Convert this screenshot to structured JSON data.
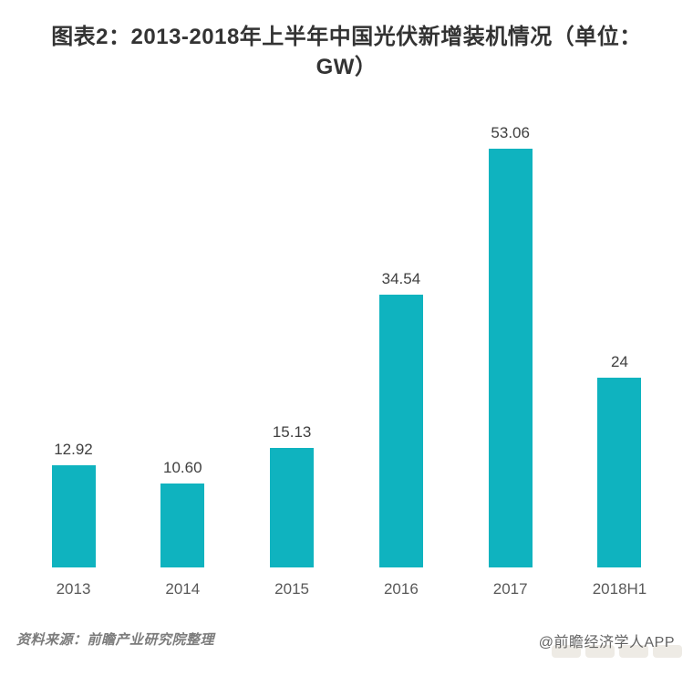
{
  "title": {
    "line1": "图表2：2013-2018年上半年中国光伏新增装机情况（单位：",
    "line2": "GW）"
  },
  "chart_data": {
    "type": "bar",
    "title": "图表2：2013-2018年上半年中国光伏新增装机情况（单位：GW）",
    "unit": "GW",
    "categories": [
      "2013",
      "2014",
      "2015",
      "2016",
      "2017",
      "2018H1"
    ],
    "values": [
      12.92,
      10.6,
      15.13,
      34.54,
      53.06,
      24
    ],
    "value_labels": [
      "12.92",
      "10.60",
      "15.13",
      "34.54",
      "53.06",
      "24"
    ],
    "xlabel": "",
    "ylabel": "",
    "ylim": [
      0,
      55
    ],
    "grid": false,
    "legend": false,
    "bar_color": "#0fb3bf",
    "value_label_color": "#404040",
    "axis_label_color": "#595959"
  },
  "footer": {
    "source": "资料来源：前瞻产业研究院整理",
    "credit": "@前瞻经济学人APP"
  }
}
